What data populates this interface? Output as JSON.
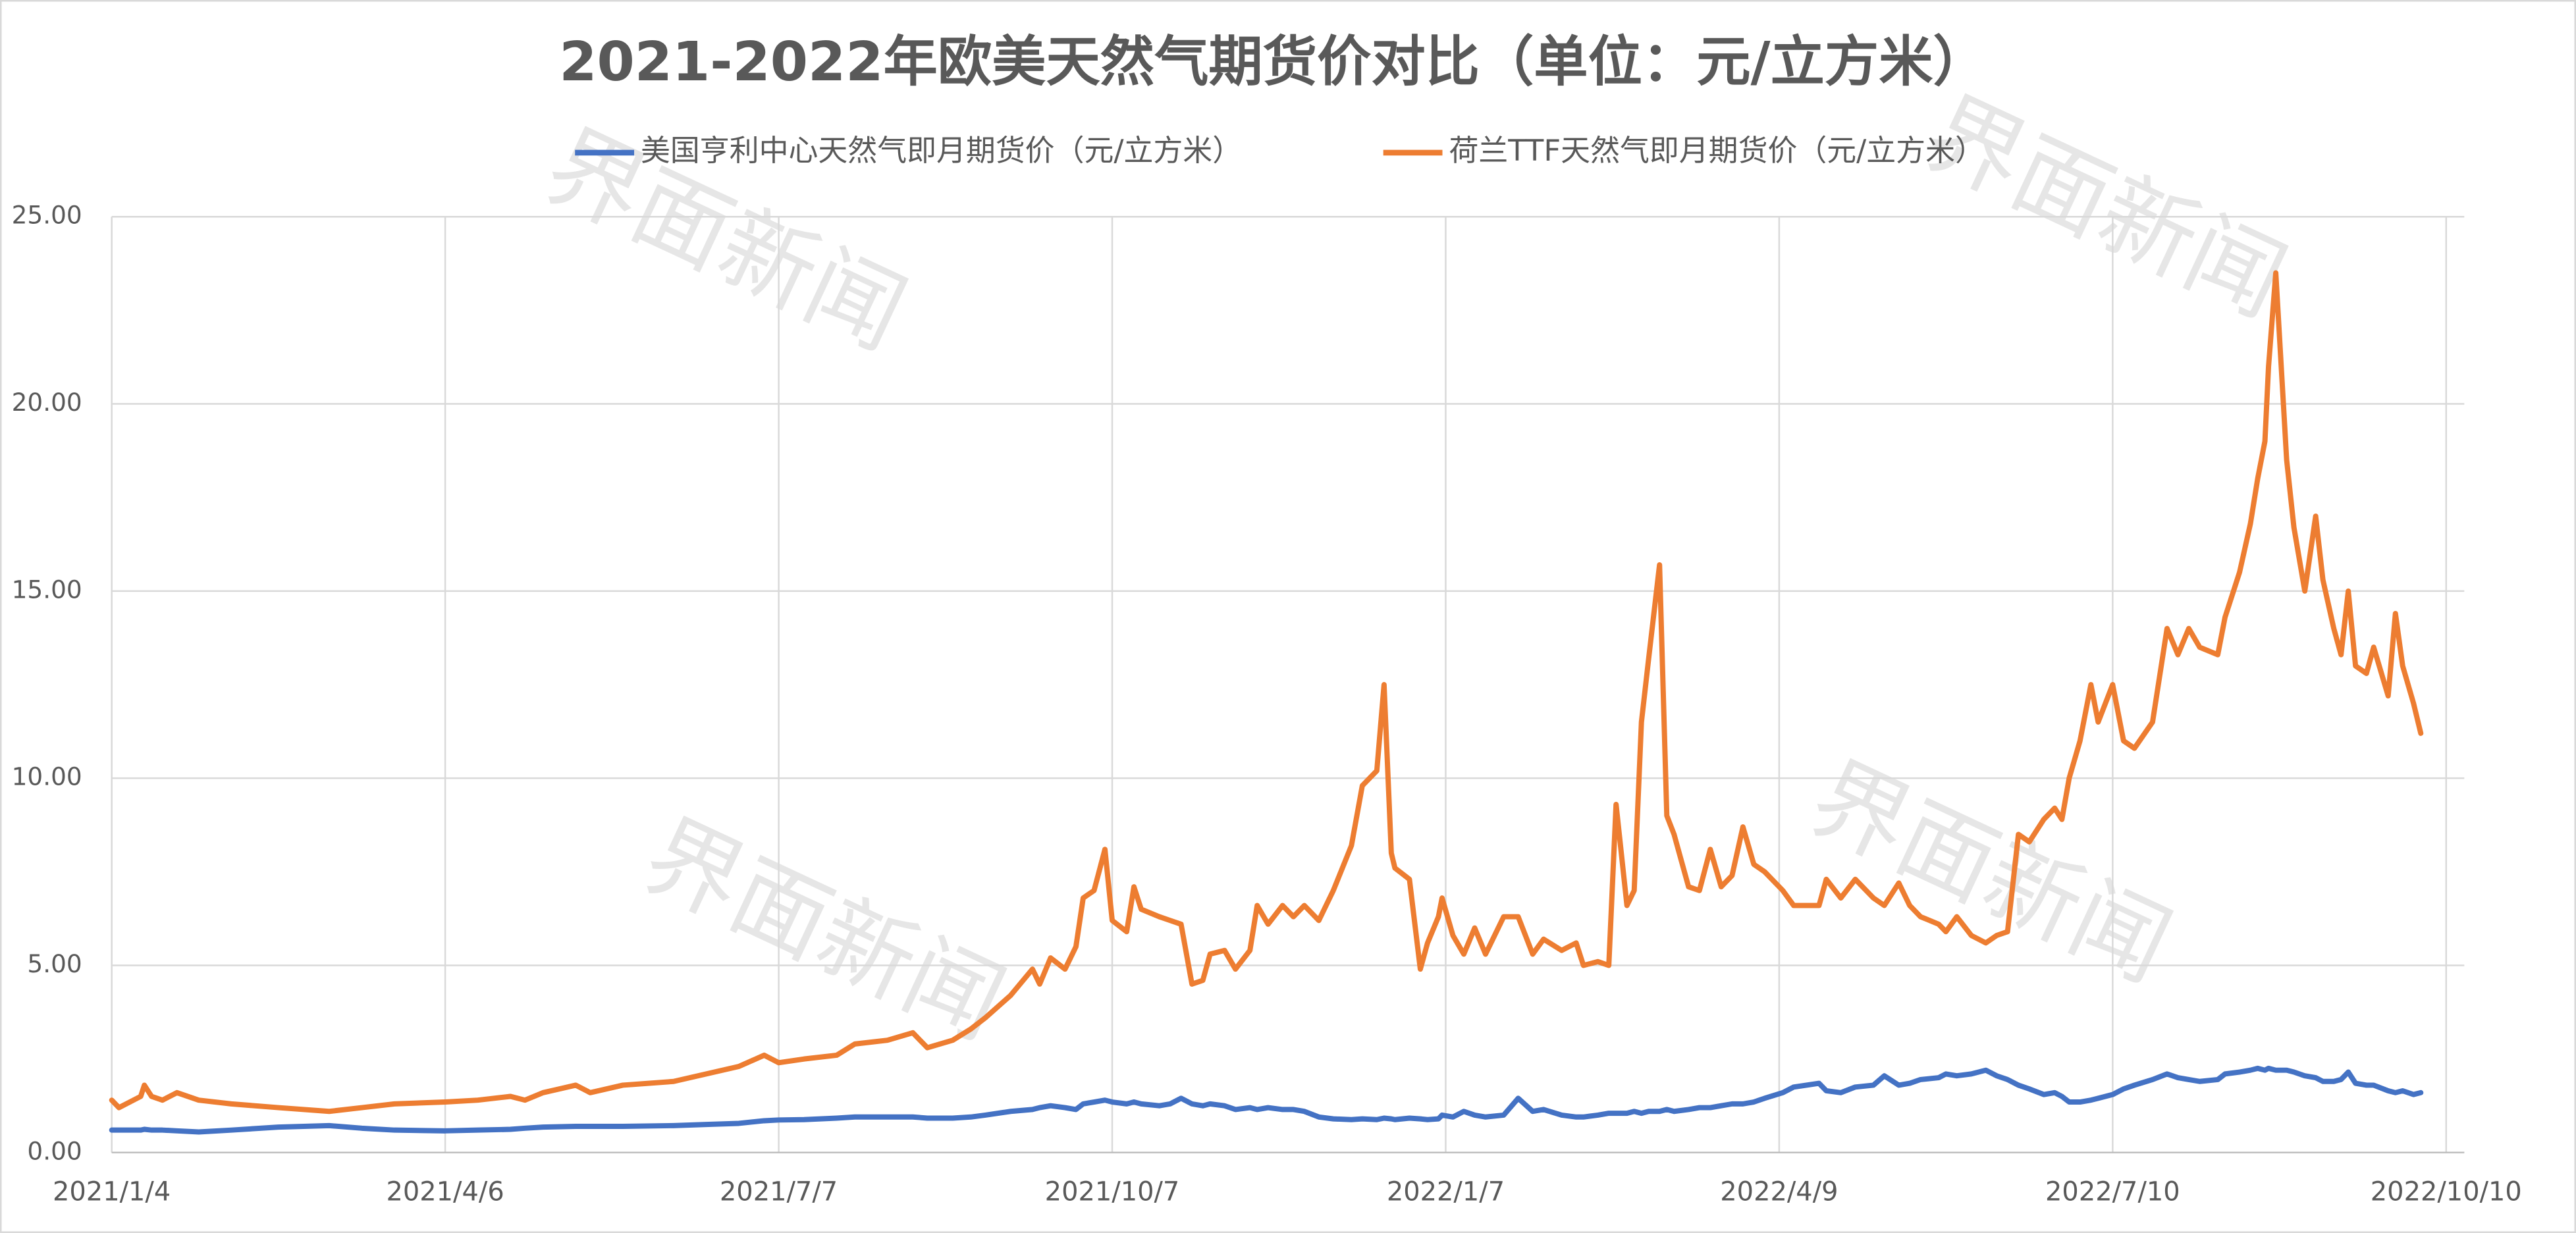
{
  "chart_data": {
    "type": "line",
    "title": "2021-2022年欧美天然气期货价对比（单位：元/立方米）",
    "watermark": "界面新闻",
    "legend": "top",
    "grid": true,
    "x": [
      "2021-01-04",
      "2021-01-06",
      "2021-01-12",
      "2021-01-13",
      "2021-01-15",
      "2021-01-18",
      "2021-01-22",
      "2021-01-28",
      "2021-02-06",
      "2021-02-19",
      "2021-03-05",
      "2021-03-14",
      "2021-03-23",
      "2021-04-06",
      "2021-04-15",
      "2021-04-24",
      "2021-04-28",
      "2021-05-03",
      "2021-05-12",
      "2021-05-16",
      "2021-05-25",
      "2021-06-08",
      "2021-06-17",
      "2021-06-26",
      "2021-07-03",
      "2021-07-07",
      "2021-07-14",
      "2021-07-23",
      "2021-07-28",
      "2021-08-06",
      "2021-08-13",
      "2021-08-17",
      "2021-08-24",
      "2021-08-29",
      "2021-09-02",
      "2021-09-09",
      "2021-09-15",
      "2021-09-17",
      "2021-09-20",
      "2021-09-24",
      "2021-09-27",
      "2021-09-29",
      "2021-10-02",
      "2021-10-05",
      "2021-10-07",
      "2021-10-11",
      "2021-10-13",
      "2021-10-15",
      "2021-10-20",
      "2021-10-23",
      "2021-10-26",
      "2021-10-29",
      "2021-11-01",
      "2021-11-03",
      "2021-11-07",
      "2021-11-10",
      "2021-11-14",
      "2021-11-16",
      "2021-11-19",
      "2021-11-23",
      "2021-11-26",
      "2021-11-29",
      "2021-12-03",
      "2021-12-07",
      "2021-12-12",
      "2021-12-15",
      "2021-12-19",
      "2021-12-21",
      "2021-12-23",
      "2021-12-24",
      "2021-12-28",
      "2021-12-31",
      "2022-01-02",
      "2022-01-05",
      "2022-01-06",
      "2022-01-09",
      "2022-01-12",
      "2022-01-15",
      "2022-01-18",
      "2022-01-23",
      "2022-01-27",
      "2022-01-31",
      "2022-02-03",
      "2022-02-08",
      "2022-02-12",
      "2022-02-14",
      "2022-02-18",
      "2022-02-21",
      "2022-02-23",
      "2022-02-26",
      "2022-02-28",
      "2022-03-02",
      "2022-03-04",
      "2022-03-07",
      "2022-03-09",
      "2022-03-11",
      "2022-03-15",
      "2022-03-18",
      "2022-03-21",
      "2022-03-24",
      "2022-03-27",
      "2022-03-30",
      "2022-04-02",
      "2022-04-05",
      "2022-04-10",
      "2022-04-13",
      "2022-04-20",
      "2022-04-22",
      "2022-04-26",
      "2022-04-30",
      "2022-05-05",
      "2022-05-08",
      "2022-05-12",
      "2022-05-15",
      "2022-05-18",
      "2022-05-23",
      "2022-05-25",
      "2022-05-28",
      "2022-06-01",
      "2022-06-05",
      "2022-06-08",
      "2022-06-11",
      "2022-06-14",
      "2022-06-17",
      "2022-06-21",
      "2022-06-24",
      "2022-06-26",
      "2022-06-28",
      "2022-07-01",
      "2022-07-04",
      "2022-07-06",
      "2022-07-10",
      "2022-07-13",
      "2022-07-16",
      "2022-07-21",
      "2022-07-25",
      "2022-07-28",
      "2022-07-31",
      "2022-08-03",
      "2022-08-08",
      "2022-08-10",
      "2022-08-14",
      "2022-08-17",
      "2022-08-19",
      "2022-08-21",
      "2022-08-22",
      "2022-08-24",
      "2022-08-27",
      "2022-08-29",
      "2022-09-01",
      "2022-09-04",
      "2022-09-06",
      "2022-09-09",
      "2022-09-11",
      "2022-09-13",
      "2022-09-15",
      "2022-09-18",
      "2022-09-20",
      "2022-09-24",
      "2022-09-26",
      "2022-09-28",
      "2022-10-01",
      "2022-10-03"
    ],
    "series": [
      {
        "name": "美国亨利中心天然气即月期货价（元/立方米）",
        "color": "#4472c4",
        "values": [
          0.6,
          0.6,
          0.6,
          0.62,
          0.6,
          0.6,
          0.58,
          0.55,
          0.6,
          0.68,
          0.72,
          0.65,
          0.6,
          0.58,
          0.6,
          0.62,
          0.65,
          0.68,
          0.7,
          0.7,
          0.7,
          0.72,
          0.75,
          0.78,
          0.85,
          0.87,
          0.88,
          0.92,
          0.95,
          0.95,
          0.95,
          0.92,
          0.92,
          0.95,
          1.0,
          1.1,
          1.15,
          1.2,
          1.25,
          1.2,
          1.15,
          1.3,
          1.35,
          1.4,
          1.35,
          1.3,
          1.35,
          1.3,
          1.25,
          1.3,
          1.45,
          1.3,
          1.25,
          1.3,
          1.25,
          1.15,
          1.2,
          1.15,
          1.2,
          1.15,
          1.15,
          1.1,
          0.95,
          0.9,
          0.88,
          0.9,
          0.88,
          0.92,
          0.9,
          0.88,
          0.92,
          0.9,
          0.88,
          0.9,
          1.0,
          0.95,
          1.1,
          1.0,
          0.95,
          1.0,
          1.45,
          1.1,
          1.15,
          1.0,
          0.95,
          0.95,
          1.0,
          1.05,
          1.05,
          1.05,
          1.1,
          1.05,
          1.1,
          1.1,
          1.15,
          1.1,
          1.15,
          1.2,
          1.2,
          1.25,
          1.3,
          1.3,
          1.35,
          1.45,
          1.6,
          1.75,
          1.85,
          1.65,
          1.6,
          1.75,
          1.8,
          2.05,
          1.8,
          1.85,
          1.95,
          2.0,
          2.1,
          2.05,
          2.1,
          2.2,
          2.05,
          1.95,
          1.8,
          1.7,
          1.55,
          1.6,
          1.5,
          1.35,
          1.35,
          1.4,
          1.45,
          1.55,
          1.7,
          1.8,
          1.95,
          2.1,
          2.0,
          1.95,
          1.9,
          1.95,
          2.1,
          2.15,
          2.2,
          2.25,
          2.2,
          2.25,
          2.2,
          2.2,
          2.15,
          2.05,
          2.0,
          1.9,
          1.9,
          1.95,
          2.15,
          1.85,
          1.8,
          1.8,
          1.65,
          1.6,
          1.65,
          1.55,
          1.6
        ]
      },
      {
        "name": "荷兰TTF天然气即月期货价（元/立方米）",
        "color": "#ed7d31",
        "values": [
          1.4,
          1.2,
          1.5,
          1.8,
          1.5,
          1.4,
          1.6,
          1.4,
          1.3,
          1.2,
          1.1,
          1.2,
          1.3,
          1.35,
          1.4,
          1.5,
          1.4,
          1.6,
          1.8,
          1.6,
          1.8,
          1.9,
          2.1,
          2.3,
          2.6,
          2.4,
          2.5,
          2.6,
          2.9,
          3.0,
          3.2,
          2.8,
          3.0,
          3.3,
          3.6,
          4.2,
          4.9,
          4.5,
          5.2,
          4.9,
          5.5,
          6.8,
          7.0,
          8.1,
          6.2,
          5.9,
          7.1,
          6.5,
          6.3,
          6.2,
          6.1,
          4.5,
          4.6,
          5.3,
          5.4,
          4.9,
          5.4,
          6.6,
          6.1,
          6.6,
          6.3,
          6.6,
          6.2,
          7.0,
          8.2,
          9.8,
          10.2,
          12.5,
          8.0,
          7.6,
          7.3,
          4.9,
          5.6,
          6.3,
          6.8,
          5.8,
          5.3,
          6.0,
          5.3,
          6.3,
          6.3,
          5.3,
          5.7,
          5.4,
          5.6,
          5.0,
          5.1,
          5.0,
          9.3,
          6.6,
          7.0,
          11.5,
          13.2,
          15.7,
          9.0,
          8.5,
          7.1,
          7.0,
          8.1,
          7.1,
          7.4,
          8.7,
          7.7,
          7.5,
          7.0,
          6.6,
          6.6,
          7.3,
          6.8,
          7.3,
          6.8,
          6.6,
          7.2,
          6.6,
          6.3,
          6.1,
          5.9,
          6.3,
          5.8,
          5.6,
          5.8,
          5.9,
          8.5,
          8.3,
          8.9,
          9.2,
          8.9,
          10.0,
          11.0,
          12.5,
          11.5,
          12.5,
          11.0,
          10.8,
          11.5,
          14.0,
          13.3,
          14.0,
          13.5,
          13.3,
          14.3,
          15.5,
          16.8,
          18.0,
          19.0,
          21.0,
          23.5,
          18.5,
          16.7,
          15.0,
          17.0,
          15.3,
          14.0,
          13.3,
          15.0,
          13.0,
          12.8,
          13.5,
          12.2,
          14.4,
          13.0,
          12.0,
          11.2
        ]
      }
    ],
    "xlim": [
      "2021-01-04",
      "2022-10-15"
    ],
    "xticks": [
      {
        "value": "2021-01-04",
        "label": "2021/1/4"
      },
      {
        "value": "2021-04-06",
        "label": "2021/4/6"
      },
      {
        "value": "2021-07-07",
        "label": "2021/7/7"
      },
      {
        "value": "2021-10-07",
        "label": "2021/10/7"
      },
      {
        "value": "2022-01-07",
        "label": "2022/1/7"
      },
      {
        "value": "2022-04-09",
        "label": "2022/4/9"
      },
      {
        "value": "2022-07-10",
        "label": "2022/7/10"
      },
      {
        "value": "2022-10-10",
        "label": "2022/10/10"
      }
    ],
    "ylim": [
      0,
      25
    ],
    "yticks": [
      {
        "value": 0,
        "label": "0.00"
      },
      {
        "value": 5,
        "label": "5.00"
      },
      {
        "value": 10,
        "label": "10.00"
      },
      {
        "value": 15,
        "label": "15.00"
      },
      {
        "value": 20,
        "label": "20.00"
      },
      {
        "value": 25,
        "label": "25.00"
      }
    ]
  }
}
